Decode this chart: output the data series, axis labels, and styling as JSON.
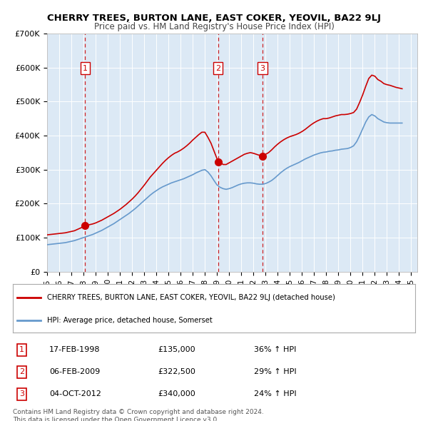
{
  "title": "CHERRY TREES, BURTON LANE, EAST COKER, YEOVIL, BA22 9LJ",
  "subtitle": "Price paid vs. HM Land Registry's House Price Index (HPI)",
  "background_color": "#dce9f5",
  "plot_bg_color": "#dce9f5",
  "red_line_color": "#cc0000",
  "blue_line_color": "#6699cc",
  "ylim": [
    0,
    700000
  ],
  "yticks": [
    0,
    100000,
    200000,
    300000,
    400000,
    500000,
    600000,
    700000
  ],
  "ytick_labels": [
    "£0",
    "£100K",
    "£200K",
    "£300K",
    "£400K",
    "£500K",
    "£600K",
    "£700K"
  ],
  "xlim_start": 1995.0,
  "xlim_end": 2025.5,
  "sale_dates": [
    1998.13,
    2009.09,
    2012.75
  ],
  "sale_prices": [
    135000,
    322500,
    340000
  ],
  "sale_labels": [
    "1",
    "2",
    "3"
  ],
  "legend_red_label": "CHERRY TREES, BURTON LANE, EAST COKER, YEOVIL, BA22 9LJ (detached house)",
  "legend_blue_label": "HPI: Average price, detached house, Somerset",
  "table_rows": [
    {
      "num": "1",
      "date": "17-FEB-1998",
      "price": "£135,000",
      "change": "36% ↑ HPI"
    },
    {
      "num": "2",
      "date": "06-FEB-2009",
      "price": "£322,500",
      "change": "29% ↑ HPI"
    },
    {
      "num": "3",
      "date": "04-OCT-2012",
      "price": "£340,000",
      "change": "24% ↑ HPI"
    }
  ],
  "footnote": "Contains HM Land Registry data © Crown copyright and database right 2024.\nThis data is licensed under the Open Government Licence v3.0.",
  "red_line_data_x": [
    1995.0,
    1995.25,
    1995.5,
    1995.75,
    1996.0,
    1996.25,
    1996.5,
    1996.75,
    1997.0,
    1997.25,
    1997.5,
    1997.75,
    1998.0,
    1998.25,
    1998.5,
    1998.75,
    1999.0,
    1999.25,
    1999.5,
    1999.75,
    2000.0,
    2000.25,
    2000.5,
    2000.75,
    2001.0,
    2001.25,
    2001.5,
    2001.75,
    2002.0,
    2002.25,
    2002.5,
    2002.75,
    2003.0,
    2003.25,
    2003.5,
    2003.75,
    2004.0,
    2004.25,
    2004.5,
    2004.75,
    2005.0,
    2005.25,
    2005.5,
    2005.75,
    2006.0,
    2006.25,
    2006.5,
    2006.75,
    2007.0,
    2007.25,
    2007.5,
    2007.75,
    2008.0,
    2008.25,
    2008.5,
    2008.75,
    2009.0,
    2009.25,
    2009.5,
    2009.75,
    2010.0,
    2010.25,
    2010.5,
    2010.75,
    2011.0,
    2011.25,
    2011.5,
    2011.75,
    2012.0,
    2012.25,
    2012.5,
    2012.75,
    2013.0,
    2013.25,
    2013.5,
    2013.75,
    2014.0,
    2014.25,
    2014.5,
    2014.75,
    2015.0,
    2015.25,
    2015.5,
    2015.75,
    2016.0,
    2016.25,
    2016.5,
    2016.75,
    2017.0,
    2017.25,
    2017.5,
    2017.75,
    2018.0,
    2018.25,
    2018.5,
    2018.75,
    2019.0,
    2019.25,
    2019.5,
    2019.75,
    2020.0,
    2020.25,
    2020.5,
    2020.75,
    2021.0,
    2021.25,
    2021.5,
    2021.75,
    2022.0,
    2022.25,
    2022.5,
    2022.75,
    2023.0,
    2023.25,
    2023.5,
    2023.75,
    2024.0,
    2024.25
  ],
  "red_line_data_y": [
    108000,
    109000,
    110000,
    111000,
    112000,
    113000,
    114000,
    116000,
    118000,
    120000,
    124000,
    128000,
    132000,
    135000,
    138000,
    140000,
    143000,
    147000,
    151000,
    156000,
    161000,
    166000,
    171000,
    177000,
    183000,
    190000,
    197000,
    205000,
    213000,
    222000,
    232000,
    243000,
    254000,
    266000,
    278000,
    288000,
    298000,
    308000,
    318000,
    327000,
    335000,
    342000,
    348000,
    352000,
    357000,
    363000,
    370000,
    378000,
    387000,
    395000,
    403000,
    410000,
    410000,
    395000,
    378000,
    355000,
    332000,
    322500,
    315000,
    315000,
    320000,
    325000,
    330000,
    335000,
    340000,
    345000,
    348000,
    350000,
    348000,
    345000,
    342000,
    340000,
    345000,
    350000,
    358000,
    367000,
    375000,
    382000,
    388000,
    393000,
    397000,
    400000,
    403000,
    407000,
    412000,
    418000,
    425000,
    432000,
    438000,
    443000,
    447000,
    450000,
    450000,
    452000,
    455000,
    458000,
    460000,
    462000,
    462000,
    463000,
    465000,
    468000,
    478000,
    498000,
    520000,
    545000,
    568000,
    578000,
    575000,
    565000,
    560000,
    553000,
    550000,
    548000,
    545000,
    542000,
    540000,
    538000
  ],
  "blue_line_data_x": [
    1995.0,
    1995.25,
    1995.5,
    1995.75,
    1996.0,
    1996.25,
    1996.5,
    1996.75,
    1997.0,
    1997.25,
    1997.5,
    1997.75,
    1998.0,
    1998.25,
    1998.5,
    1998.75,
    1999.0,
    1999.25,
    1999.5,
    1999.75,
    2000.0,
    2000.25,
    2000.5,
    2000.75,
    2001.0,
    2001.25,
    2001.5,
    2001.75,
    2002.0,
    2002.25,
    2002.5,
    2002.75,
    2003.0,
    2003.25,
    2003.5,
    2003.75,
    2004.0,
    2004.25,
    2004.5,
    2004.75,
    2005.0,
    2005.25,
    2005.5,
    2005.75,
    2006.0,
    2006.25,
    2006.5,
    2006.75,
    2007.0,
    2007.25,
    2007.5,
    2007.75,
    2008.0,
    2008.25,
    2008.5,
    2008.75,
    2009.0,
    2009.25,
    2009.5,
    2009.75,
    2010.0,
    2010.25,
    2010.5,
    2010.75,
    2011.0,
    2011.25,
    2011.5,
    2011.75,
    2012.0,
    2012.25,
    2012.5,
    2012.75,
    2013.0,
    2013.25,
    2013.5,
    2013.75,
    2014.0,
    2014.25,
    2014.5,
    2014.75,
    2015.0,
    2015.25,
    2015.5,
    2015.75,
    2016.0,
    2016.25,
    2016.5,
    2016.75,
    2017.0,
    2017.25,
    2017.5,
    2017.75,
    2018.0,
    2018.25,
    2018.5,
    2018.75,
    2019.0,
    2019.25,
    2019.5,
    2019.75,
    2020.0,
    2020.25,
    2020.5,
    2020.75,
    2021.0,
    2021.25,
    2021.5,
    2021.75,
    2022.0,
    2022.25,
    2022.5,
    2022.75,
    2023.0,
    2023.25,
    2023.5,
    2023.75,
    2024.0,
    2024.25
  ],
  "blue_line_data_y": [
    79000,
    80000,
    81000,
    82000,
    83000,
    84000,
    85000,
    87000,
    89000,
    91000,
    94000,
    97000,
    100000,
    103000,
    106000,
    109000,
    113000,
    117000,
    121000,
    126000,
    131000,
    136000,
    141000,
    147000,
    153000,
    159000,
    165000,
    171000,
    178000,
    185000,
    193000,
    201000,
    209000,
    217000,
    225000,
    232000,
    238000,
    244000,
    249000,
    253000,
    257000,
    261000,
    264000,
    267000,
    270000,
    273000,
    277000,
    281000,
    285000,
    290000,
    294000,
    298000,
    300000,
    293000,
    282000,
    268000,
    255000,
    248000,
    244000,
    242000,
    244000,
    247000,
    251000,
    255000,
    258000,
    260000,
    261000,
    261000,
    260000,
    258000,
    257000,
    257000,
    259000,
    263000,
    268000,
    275000,
    283000,
    291000,
    298000,
    304000,
    309000,
    313000,
    317000,
    321000,
    326000,
    331000,
    335000,
    339000,
    343000,
    346000,
    349000,
    351000,
    352000,
    354000,
    355000,
    357000,
    358000,
    360000,
    361000,
    362000,
    365000,
    370000,
    382000,
    400000,
    420000,
    440000,
    455000,
    462000,
    458000,
    450000,
    445000,
    440000,
    438000,
    437000,
    437000,
    437000,
    437000,
    437000
  ]
}
